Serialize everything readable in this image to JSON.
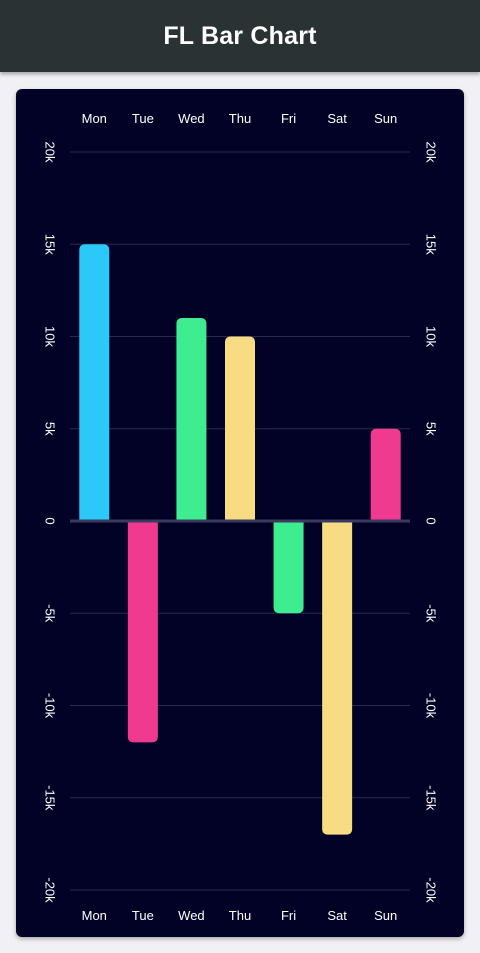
{
  "appbar": {
    "title": "FL Bar Chart"
  },
  "chart_data": {
    "type": "bar",
    "categories": [
      "Mon",
      "Tue",
      "Wed",
      "Thu",
      "Fri",
      "Sat",
      "Sun"
    ],
    "values": [
      15000,
      -12000,
      11000,
      10000,
      -5000,
      -17000,
      5000
    ],
    "bar_colors": [
      "#2bc8f8",
      "#ef3a8f",
      "#3ded8f",
      "#f8dc84",
      "#3ded8f",
      "#f8dc84",
      "#ef3a8f"
    ],
    "ylim": [
      -20000,
      20000
    ],
    "y_ticks": [
      {
        "value": 20000,
        "label": "20k"
      },
      {
        "value": 15000,
        "label": "15k"
      },
      {
        "value": 10000,
        "label": "10k"
      },
      {
        "value": 5000,
        "label": "5k"
      },
      {
        "value": 0,
        "label": "0"
      },
      {
        "value": -5000,
        "label": "-5k"
      },
      {
        "value": -10000,
        "label": "-10k"
      },
      {
        "value": -15000,
        "label": "-15k"
      },
      {
        "value": -20000,
        "label": "-20k"
      }
    ],
    "title": "",
    "xlabel": "",
    "ylabel": "",
    "x_labels_top": true,
    "x_labels_bottom": true,
    "y_labels_left": true,
    "y_labels_right": true,
    "grid": "horizontal",
    "colors": {
      "background": "#020226",
      "grid": "#2a2a4a",
      "zero_line": "#3a3a60",
      "text": "#ffffff"
    }
  }
}
